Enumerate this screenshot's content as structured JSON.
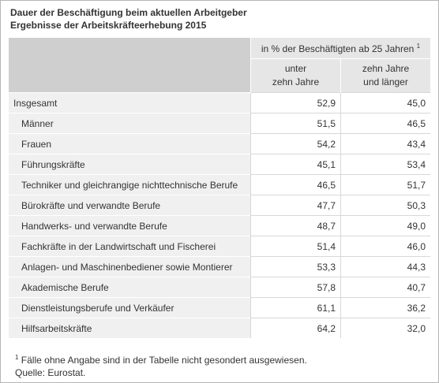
{
  "title": {
    "line1": "Dauer der Beschäftigung beim aktuellen Arbeitgeber",
    "line2": "Ergebnisse der Arbeitskräfteerhebung 2015"
  },
  "table": {
    "group_header": "in % der Beschäftigten ab 25 Jahren",
    "group_header_note": "1",
    "col1_line1": "unter",
    "col1_line2": "zehn Jahre",
    "col2_line1": "zehn Jahre",
    "col2_line2": "und länger",
    "rows": [
      {
        "label": "Insgesamt",
        "v1": "52,9",
        "v2": "45,0"
      },
      {
        "label": "Männer",
        "v1": "51,5",
        "v2": "46,5"
      },
      {
        "label": "Frauen",
        "v1": "54,2",
        "v2": "43,4"
      },
      {
        "label": "Führungskräfte",
        "v1": "45,1",
        "v2": "53,4"
      },
      {
        "label": "Techniker und gleichrangige nichttechnische Berufe",
        "v1": "46,5",
        "v2": "51,7"
      },
      {
        "label": "Bürokräfte und verwandte Berufe",
        "v1": "47,7",
        "v2": "50,3"
      },
      {
        "label": "Handwerks- und verwandte Berufe",
        "v1": "48,7",
        "v2": "49,0"
      },
      {
        "label": "Fachkräfte in der Landwirtschaft und Fischerei",
        "v1": "51,4",
        "v2": "46,0"
      },
      {
        "label": "Anlagen- und Maschinenbediener sowie Montierer",
        "v1": "53,3",
        "v2": "44,3"
      },
      {
        "label": "Akademische Berufe",
        "v1": "57,8",
        "v2": "40,7"
      },
      {
        "label": "Dienstleistungsberufe und Verkäufer",
        "v1": "61,1",
        "v2": "36,2"
      },
      {
        "label": "Hilfsarbeitskräfte",
        "v1": "64,2",
        "v2": "32,0"
      }
    ]
  },
  "footnote": {
    "marker": "1",
    "text": "Fälle ohne Angabe sind in der Tabelle nicht gesondert ausgewiesen.",
    "source": "Quelle: Eurostat."
  }
}
